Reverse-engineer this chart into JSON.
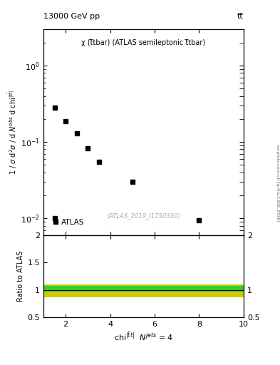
{
  "title_left": "13000 GeV pp",
  "title_right": "tt̅",
  "plot_label": "χ (t̅tbar) (ATLAS semileptonic t̅tbar)",
  "watermark": "(ATLAS_2019_I1750330)",
  "arxiv_label": "mcplots.cern.ch [arXiv:1306.3436]",
  "data_x": [
    1.5,
    2.0,
    2.5,
    3.0,
    3.5,
    5.0,
    8.0
  ],
  "data_y": [
    0.28,
    0.185,
    0.13,
    0.082,
    0.055,
    0.03,
    0.0095
  ],
  "ylim_main": [
    0.006,
    3.0
  ],
  "xlim": [
    1,
    10
  ],
  "xticks": [
    2,
    4,
    6,
    8,
    10
  ],
  "ratio_band_green_low": 0.975,
  "ratio_band_green_high": 1.075,
  "ratio_band_yellow_low": 0.87,
  "ratio_band_yellow_high": 1.1,
  "ratio_ylim": [
    0.5,
    2.0
  ],
  "ratio_ylabel": "Ratio to ATLAS",
  "marker_color": "black",
  "marker_style": "s",
  "marker_size": 5,
  "green_color": "#33cc33",
  "yellow_color": "#cccc00",
  "line_color": "black"
}
